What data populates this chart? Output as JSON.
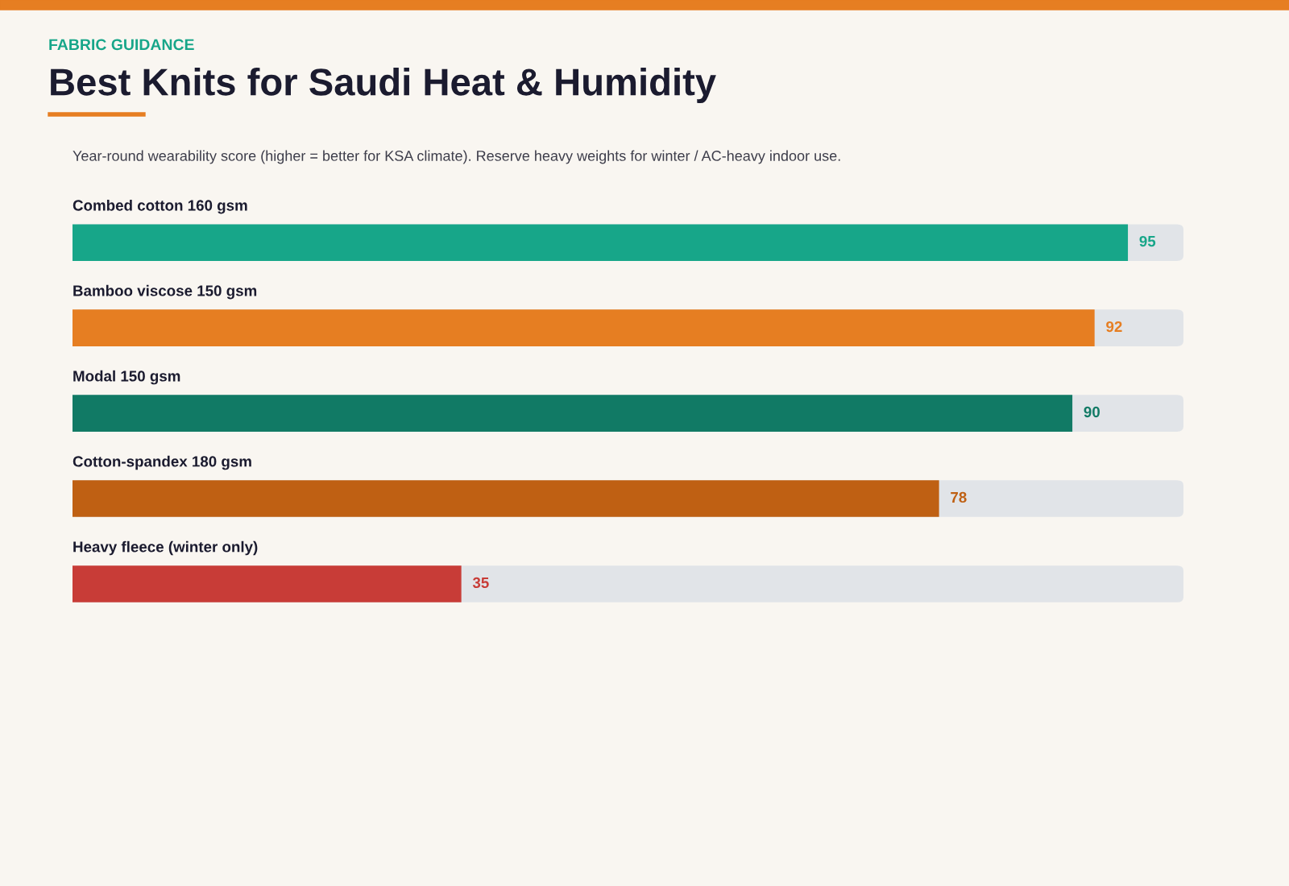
{
  "chart_data": {
    "type": "bar",
    "orientation": "horizontal",
    "title": "Best Knits for Saudi Heat & Humidity",
    "subtitle": "Year-round wearability score (higher = better for KSA climate). Reserve heavy weights for winter / AC-heavy indoor use.",
    "annotations": [
      "FABRIC GUIDANCE"
    ],
    "categories": [
      "Combed cotton 160 gsm",
      "Bamboo viscose 150 gsm",
      "Modal 150 gsm",
      "Cotton-spandex 180 gsm",
      "Heavy fleece (winter only)"
    ],
    "values": [
      95,
      92,
      90,
      78,
      35
    ],
    "colors": [
      "#17a689",
      "#e67e22",
      "#117a65",
      "#bf6013",
      "#c83c37"
    ],
    "xlim": [
      0,
      100
    ],
    "data_labels": true
  }
}
